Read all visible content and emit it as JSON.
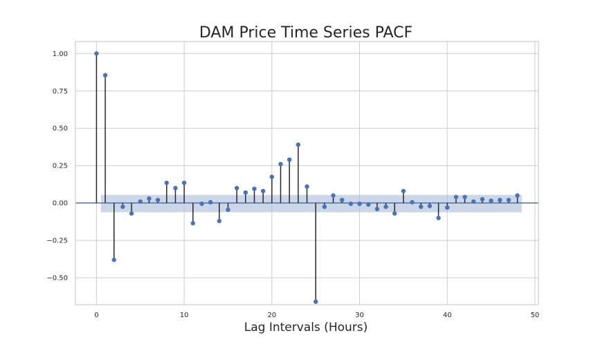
{
  "chart_data": {
    "type": "stem",
    "title": "DAM Price Time Series PACF",
    "xlabel": "Lag Intervals (Hours)",
    "ylabel": "",
    "xlim": [
      -2.4,
      50.4
    ],
    "ylim": [
      -0.68,
      1.08
    ],
    "x_ticks": [
      0,
      10,
      20,
      30,
      40,
      50
    ],
    "y_ticks": [
      1.0,
      0.75,
      0.5,
      0.25,
      0.0,
      -0.25,
      -0.5
    ],
    "x_tick_labels": [
      "0",
      "10",
      "20",
      "30",
      "40",
      "50"
    ],
    "y_tick_labels": [
      "1.00",
      "0.75",
      "0.50",
      "0.25",
      "0.00",
      "−0.25",
      "−0.50"
    ],
    "grid": true,
    "confidence_band": {
      "x_start": 0.5,
      "x_end": 48.5,
      "lower": -0.062,
      "upper": 0.054
    },
    "lags": [
      0,
      1,
      2,
      3,
      4,
      5,
      6,
      7,
      8,
      9,
      10,
      11,
      12,
      13,
      14,
      15,
      16,
      17,
      18,
      19,
      20,
      21,
      22,
      23,
      24,
      25,
      26,
      27,
      28,
      29,
      30,
      31,
      32,
      33,
      34,
      35,
      36,
      37,
      38,
      39,
      40,
      41,
      42,
      43,
      44,
      45,
      46,
      47,
      48
    ],
    "values": [
      1.0,
      0.855,
      -0.38,
      -0.025,
      -0.07,
      0.01,
      0.03,
      0.02,
      0.135,
      0.1,
      0.135,
      -0.135,
      -0.005,
      0.005,
      -0.12,
      -0.045,
      0.1,
      0.07,
      0.095,
      0.08,
      0.175,
      0.26,
      0.29,
      0.39,
      0.11,
      -0.66,
      -0.025,
      0.05,
      0.02,
      -0.005,
      -0.005,
      -0.01,
      -0.04,
      -0.025,
      -0.07,
      0.08,
      0.005,
      -0.025,
      -0.02,
      -0.1,
      -0.03,
      0.04,
      0.04,
      0.01,
      0.025,
      0.015,
      0.02,
      0.02,
      0.05
    ],
    "colors": {
      "marker": "#4c72b0",
      "stem": "#262626",
      "band": "#b0c0dd",
      "zero_line": "#4c72b0",
      "grid": "#cccccc",
      "axes_edge": "#cccccc"
    }
  }
}
